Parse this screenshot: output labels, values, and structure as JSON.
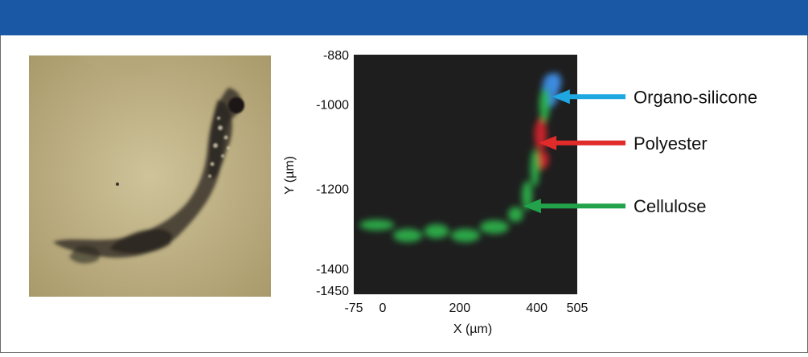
{
  "chart_data": {
    "type": "heatmap",
    "title": "",
    "xlabel": "X (µm)",
    "ylabel": "Y (µm)",
    "xlim": [
      -75,
      505
    ],
    "ylim": [
      -1450,
      -880
    ],
    "x_ticks": [
      {
        "value": -75,
        "label": "-75"
      },
      {
        "value": 0,
        "label": "0"
      },
      {
        "value": 200,
        "label": "200"
      },
      {
        "value": 400,
        "label": "400"
      },
      {
        "value": 505,
        "label": "505"
      }
    ],
    "y_ticks": [
      {
        "value": -880,
        "label": "-880"
      },
      {
        "value": -1000,
        "label": "-1000"
      },
      {
        "value": -1200,
        "label": "-1200"
      },
      {
        "value": -1400,
        "label": "-1400"
      },
      {
        "value": -1450,
        "label": "-1450"
      }
    ],
    "background_color": "#1e1e1e",
    "series": [
      {
        "name": "Organo-silicone",
        "color": "#3d8ee6",
        "arrow_color": "#1ea7e1",
        "pointer": [
          440,
          -980
        ],
        "regions": [
          {
            "x": 435,
            "y": -965,
            "rx": 22,
            "ry": 40
          },
          {
            "x": 448,
            "y": -945,
            "rx": 16,
            "ry": 22
          }
        ]
      },
      {
        "name": "Polyester",
        "color": "#d9232b",
        "arrow_color": "#e02b2b",
        "pointer": [
          405,
          -1090
        ],
        "regions": [
          {
            "x": 410,
            "y": -1070,
            "rx": 16,
            "ry": 38
          },
          {
            "x": 415,
            "y": -1130,
            "rx": 16,
            "ry": 22
          }
        ]
      },
      {
        "name": "Cellulose",
        "color": "#2bb54b",
        "arrow_color": "#22a24a",
        "pointer": [
          365,
          -1240
        ],
        "regions": [
          {
            "x": 420,
            "y": -1000,
            "rx": 14,
            "ry": 40
          },
          {
            "x": 395,
            "y": -1150,
            "rx": 12,
            "ry": 45
          },
          {
            "x": 375,
            "y": -1215,
            "rx": 14,
            "ry": 35
          },
          {
            "x": 345,
            "y": -1260,
            "rx": 20,
            "ry": 18
          },
          {
            "x": 290,
            "y": -1290,
            "rx": 38,
            "ry": 16
          },
          {
            "x": 215,
            "y": -1310,
            "rx": 38,
            "ry": 16
          },
          {
            "x": 140,
            "y": -1300,
            "rx": 32,
            "ry": 17
          },
          {
            "x": 65,
            "y": -1310,
            "rx": 38,
            "ry": 16
          },
          {
            "x": -15,
            "y": -1285,
            "rx": 45,
            "ry": 13
          }
        ]
      }
    ]
  }
}
